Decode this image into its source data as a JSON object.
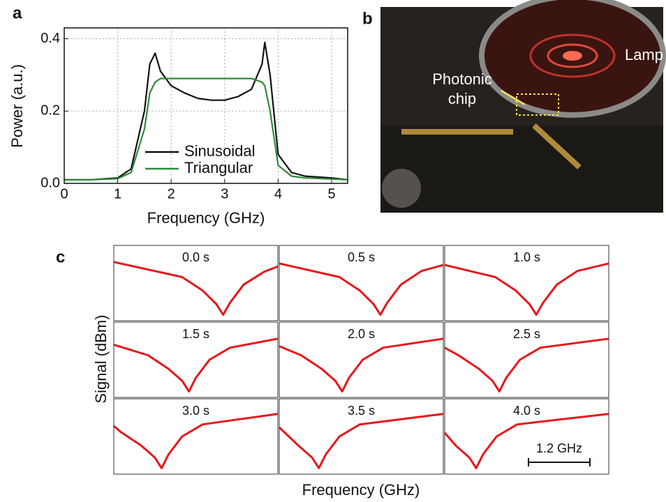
{
  "chart_data": [
    {
      "type": "line",
      "panel_label": "a",
      "x_label": "Frequency (GHz)",
      "y_label": "Power (a.u.)",
      "x": [
        0,
        0.5,
        1,
        1.25,
        1.5,
        1.6,
        1.7,
        1.8,
        2,
        2.25,
        2.5,
        2.75,
        3,
        3.25,
        3.5,
        3.7,
        3.75,
        3.85,
        4,
        4.25,
        4.5,
        5,
        5.3
      ],
      "series": [
        {
          "name": "Sinusoidal",
          "color": "#111111",
          "values": [
            0.01,
            0.01,
            0.015,
            0.04,
            0.2,
            0.33,
            0.36,
            0.31,
            0.27,
            0.25,
            0.235,
            0.23,
            0.23,
            0.24,
            0.26,
            0.33,
            0.39,
            0.3,
            0.08,
            0.03,
            0.02,
            0.015,
            0.01
          ]
        },
        {
          "name": "Triangular",
          "color": "#2e8b3a",
          "values": [
            0.01,
            0.01,
            0.013,
            0.03,
            0.15,
            0.25,
            0.28,
            0.29,
            0.29,
            0.29,
            0.29,
            0.29,
            0.29,
            0.29,
            0.29,
            0.28,
            0.27,
            0.2,
            0.05,
            0.02,
            0.015,
            0.012,
            0.01
          ]
        }
      ],
      "xlim": [
        0,
        5.3
      ],
      "xticks": [
        0,
        1,
        2,
        3,
        4,
        5
      ],
      "ylim": [
        0,
        0.43
      ],
      "yticks": [
        {
          "value": 0,
          "label": "0.0"
        },
        {
          "value": 0.2,
          "label": "0.2"
        },
        {
          "value": 0.4,
          "label": "0.4"
        }
      ],
      "grid": true
    },
    {
      "type": "small-multiples",
      "panel_label": "c",
      "x_label": "Frequency (GHz)",
      "y_label": "Signal (dBm)",
      "color": "#e8161b",
      "xlim": [
        0,
        12
      ],
      "ylim": [
        0,
        10
      ],
      "scale_bar_label": "1.2 GHz",
      "panels": [
        {
          "title": "0.0 s",
          "x": [
            0,
            5,
            6.5,
            7.5,
            8,
            8.5,
            9.5,
            11,
            12
          ],
          "values": [
            7.8,
            5.8,
            4,
            2.2,
            0.8,
            2.4,
            4.8,
            6.5,
            7.2
          ]
        },
        {
          "title": "0.5 s",
          "x": [
            0,
            4.4,
            5.9,
            6.9,
            7.4,
            7.9,
            8.9,
            10.4,
            12
          ],
          "values": [
            7.6,
            5.8,
            4,
            2.2,
            0.8,
            2.4,
            4.8,
            6.6,
            7.4
          ]
        },
        {
          "title": "1.0 s",
          "x": [
            0,
            3.7,
            5.2,
            6.2,
            6.7,
            7.2,
            8.2,
            9.7,
            12
          ],
          "values": [
            7.4,
            5.8,
            4,
            2.2,
            0.8,
            2.4,
            4.8,
            6.6,
            7.6
          ]
        },
        {
          "title": "1.5 s",
          "x": [
            0,
            2.5,
            4,
            5,
            5.5,
            6,
            7,
            8.5,
            12
          ],
          "values": [
            7,
            5.6,
            3.8,
            2.2,
            0.8,
            2.6,
            5,
            6.6,
            7.8
          ]
        },
        {
          "title": "2.0 s",
          "x": [
            0,
            1.6,
            3.1,
            4.1,
            4.6,
            5.1,
            6.1,
            7.6,
            12
          ],
          "values": [
            6.8,
            5.6,
            3.8,
            2.2,
            0.8,
            2.6,
            5,
            6.6,
            7.8
          ]
        },
        {
          "title": "2.5 s",
          "x": [
            0,
            1,
            2.5,
            3.5,
            4,
            4.5,
            5.5,
            7,
            12
          ],
          "values": [
            6.6,
            5.6,
            3.8,
            2.2,
            0.8,
            2.6,
            5,
            6.6,
            7.8
          ]
        },
        {
          "title": "3.0 s",
          "x": [
            0,
            0.5,
            2,
            3,
            3.5,
            4,
            5,
            6.5,
            12
          ],
          "values": [
            6.4,
            5.6,
            3.8,
            2.2,
            0.8,
            2.6,
            5,
            6.6,
            8
          ]
        },
        {
          "title": "3.5 s",
          "x": [
            0,
            1.4,
            2.4,
            2.9,
            3.4,
            4.4,
            5.9,
            12
          ],
          "values": [
            6.2,
            3.8,
            2.2,
            0.8,
            2.6,
            5,
            6.6,
            8
          ]
        },
        {
          "title": "4.0 s",
          "x": [
            0,
            0.8,
            1.8,
            2.3,
            2.8,
            3.8,
            5.3,
            12
          ],
          "values": [
            5.5,
            3.8,
            2.2,
            0.8,
            2.6,
            5,
            6.6,
            8
          ]
        }
      ]
    }
  ],
  "photo": {
    "panel_label": "b",
    "lamp_label": "Lamp",
    "chip_label_lines": [
      "Photonic",
      "chip"
    ]
  }
}
